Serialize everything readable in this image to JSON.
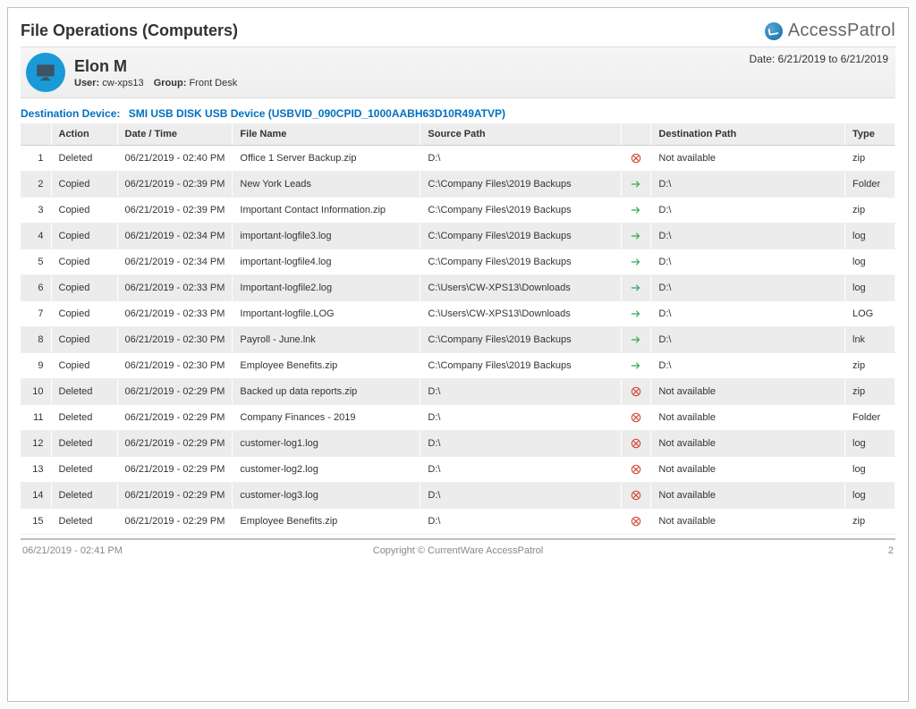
{
  "report": {
    "title": "File Operations (Computers)",
    "brand_name": "AccessPatrol",
    "date_from": "6/21/2019",
    "date_to": "6/21/2019",
    "date_range_label": "Date: 6/21/2019  to  6/21/2019",
    "display_name": "Elon M",
    "user_label": "User:",
    "user_value": "cw-xps13",
    "group_label": "Group:",
    "group_value": "Front Desk",
    "dest_device_label": "Destination Device:",
    "dest_device_value": "SMI USB DISK USB Device (USBVID_090CPID_1000AABH63D10R49ATVP)"
  },
  "columns": {
    "idx": "",
    "action": "Action",
    "datetime": "Date / Time",
    "filename": "File Name",
    "source": "Source Path",
    "icon": "",
    "dest": "Destination Path",
    "type": "Type"
  },
  "rows": [
    {
      "idx": "1",
      "action": "Deleted",
      "datetime": "06/21/2019 - 02:40 PM",
      "filename": "Office 1 Server Backup.zip",
      "source": "D:\\",
      "status": "deleted",
      "dest": "Not available",
      "type": "zip"
    },
    {
      "idx": "2",
      "action": "Copied",
      "datetime": "06/21/2019 - 02:39 PM",
      "filename": "New York Leads",
      "source": "C:\\Company Files\\2019 Backups",
      "status": "copied",
      "dest": "D:\\",
      "type": "Folder"
    },
    {
      "idx": "3",
      "action": "Copied",
      "datetime": "06/21/2019 - 02:39 PM",
      "filename": "Important Contact Information.zip",
      "source": "C:\\Company Files\\2019 Backups",
      "status": "copied",
      "dest": "D:\\",
      "type": "zip"
    },
    {
      "idx": "4",
      "action": "Copied",
      "datetime": "06/21/2019 - 02:34 PM",
      "filename": "important-logfile3.log",
      "source": "C:\\Company Files\\2019 Backups",
      "status": "copied",
      "dest": "D:\\",
      "type": "log"
    },
    {
      "idx": "5",
      "action": "Copied",
      "datetime": "06/21/2019 - 02:34 PM",
      "filename": "important-logfile4.log",
      "source": "C:\\Company Files\\2019 Backups",
      "status": "copied",
      "dest": "D:\\",
      "type": "log"
    },
    {
      "idx": "6",
      "action": "Copied",
      "datetime": "06/21/2019 - 02:33 PM",
      "filename": "Important-logfile2.log",
      "source": "C:\\Users\\CW-XPS13\\Downloads",
      "status": "copied",
      "dest": "D:\\",
      "type": "log"
    },
    {
      "idx": "7",
      "action": "Copied",
      "datetime": "06/21/2019 - 02:33 PM",
      "filename": "Important-logfile.LOG",
      "source": "C:\\Users\\CW-XPS13\\Downloads",
      "status": "copied",
      "dest": "D:\\",
      "type": "LOG"
    },
    {
      "idx": "8",
      "action": "Copied",
      "datetime": "06/21/2019 - 02:30 PM",
      "filename": "Payroll - June.lnk",
      "source": "C:\\Company Files\\2019 Backups",
      "status": "copied",
      "dest": "D:\\",
      "type": "lnk"
    },
    {
      "idx": "9",
      "action": "Copied",
      "datetime": "06/21/2019 - 02:30 PM",
      "filename": "Employee Benefits.zip",
      "source": "C:\\Company Files\\2019 Backups",
      "status": "copied",
      "dest": "D:\\",
      "type": "zip"
    },
    {
      "idx": "10",
      "action": "Deleted",
      "datetime": "06/21/2019 - 02:29 PM",
      "filename": "Backed up data reports.zip",
      "source": "D:\\",
      "status": "deleted",
      "dest": "Not available",
      "type": "zip"
    },
    {
      "idx": "11",
      "action": "Deleted",
      "datetime": "06/21/2019 - 02:29 PM",
      "filename": "Company Finances - 2019",
      "source": "D:\\",
      "status": "deleted",
      "dest": "Not available",
      "type": "Folder"
    },
    {
      "idx": "12",
      "action": "Deleted",
      "datetime": "06/21/2019 - 02:29 PM",
      "filename": "customer-log1.log",
      "source": "D:\\",
      "status": "deleted",
      "dest": "Not available",
      "type": "log"
    },
    {
      "idx": "13",
      "action": "Deleted",
      "datetime": "06/21/2019 - 02:29 PM",
      "filename": "customer-log2.log",
      "source": "D:\\",
      "status": "deleted",
      "dest": "Not available",
      "type": "log"
    },
    {
      "idx": "14",
      "action": "Deleted",
      "datetime": "06/21/2019 - 02:29 PM",
      "filename": "customer-log3.log",
      "source": "D:\\",
      "status": "deleted",
      "dest": "Not available",
      "type": "log"
    },
    {
      "idx": "15",
      "action": "Deleted",
      "datetime": "06/21/2019 - 02:29 PM",
      "filename": "Employee Benefits.zip",
      "source": "D:\\",
      "status": "deleted",
      "dest": "Not available",
      "type": "zip"
    }
  ],
  "footer": {
    "timestamp": "06/21/2019 - 02:41 PM",
    "copyright": "Copyright © CurrentWare AccessPatrol",
    "page": "2"
  },
  "colors": {
    "link_blue": "#0070c0",
    "header_bg": "#ededed",
    "row_alt_bg": "#ececec",
    "icon_arrow": "#3aa35a",
    "icon_delete": "#d44a3a",
    "brand_blue": "#1a9bd7"
  }
}
